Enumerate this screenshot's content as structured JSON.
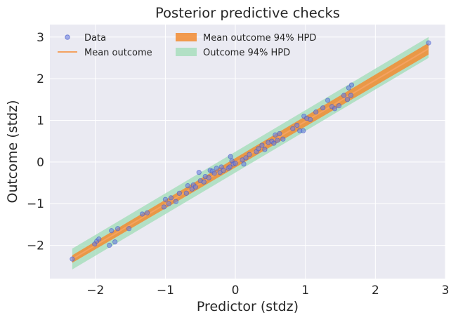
{
  "chart_data": {
    "type": "scatter",
    "title": "Posterior predictive checks",
    "xlabel": "Predictor (stdz)",
    "ylabel": "Outcome (stdz)",
    "xlim": [
      -2.65,
      3.0
    ],
    "ylim": [
      -2.8,
      3.3
    ],
    "xticks": [
      -2,
      -1,
      0,
      1,
      2,
      3
    ],
    "yticks": [
      -2,
      -1,
      0,
      1,
      2,
      3
    ],
    "xtick_labels": [
      "−2",
      "−1",
      "0",
      "1",
      "2",
      "3"
    ],
    "ytick_labels": [
      "−2",
      "−1",
      "0",
      "1",
      "2",
      "3"
    ],
    "grid": true,
    "legend_position": "top-left",
    "colors": {
      "data": "#6b7fe0",
      "mean_line": "#f4a261",
      "mean_band": "#f28b30",
      "outcome_band": "#9fdcb5",
      "background": "#eaeaf2"
    },
    "legend": [
      {
        "label": "Data",
        "kind": "marker"
      },
      {
        "label": "Mean outcome",
        "kind": "line"
      },
      {
        "label": "Mean outcome 94% HPD",
        "kind": "band-orange"
      },
      {
        "label": "Outcome 94% HPD",
        "kind": "band-green"
      }
    ],
    "mean_line": {
      "x": [
        -2.33,
        2.76
      ],
      "y": [
        -2.33,
        2.72
      ]
    },
    "mean_band": {
      "x": [
        -2.33,
        2.76
      ],
      "lower": [
        -2.42,
        2.58
      ],
      "upper": [
        -2.24,
        2.86
      ]
    },
    "outcome_band": {
      "x": [
        -2.33,
        2.76
      ],
      "lower": [
        -2.58,
        2.5
      ],
      "upper": [
        -2.08,
        3.0
      ]
    },
    "points": [
      {
        "x": -2.33,
        "y": -2.33
      },
      {
        "x": -2.01,
        "y": -1.97
      },
      {
        "x": -1.98,
        "y": -1.9
      },
      {
        "x": -1.95,
        "y": -1.85
      },
      {
        "x": -1.8,
        "y": -2.0
      },
      {
        "x": -1.72,
        "y": -1.92
      },
      {
        "x": -1.77,
        "y": -1.65
      },
      {
        "x": -1.68,
        "y": -1.6
      },
      {
        "x": -1.52,
        "y": -1.6
      },
      {
        "x": -1.33,
        "y": -1.25
      },
      {
        "x": -1.26,
        "y": -1.22
      },
      {
        "x": -1.02,
        "y": -1.08
      },
      {
        "x": -1.0,
        "y": -0.9
      },
      {
        "x": -0.95,
        "y": -1.0
      },
      {
        "x": -0.92,
        "y": -0.86
      },
      {
        "x": -0.85,
        "y": -0.95
      },
      {
        "x": -0.8,
        "y": -0.75
      },
      {
        "x": -0.7,
        "y": -0.75
      },
      {
        "x": -0.68,
        "y": -0.57
      },
      {
        "x": -0.62,
        "y": -0.65
      },
      {
        "x": -0.6,
        "y": -0.55
      },
      {
        "x": -0.57,
        "y": -0.6
      },
      {
        "x": -0.5,
        "y": -0.45
      },
      {
        "x": -0.52,
        "y": -0.25
      },
      {
        "x": -0.45,
        "y": -0.48
      },
      {
        "x": -0.43,
        "y": -0.35
      },
      {
        "x": -0.38,
        "y": -0.38
      },
      {
        "x": -0.36,
        "y": -0.2
      },
      {
        "x": -0.33,
        "y": -0.22
      },
      {
        "x": -0.3,
        "y": -0.27
      },
      {
        "x": -0.27,
        "y": -0.15
      },
      {
        "x": -0.22,
        "y": -0.25
      },
      {
        "x": -0.2,
        "y": -0.12
      },
      {
        "x": -0.17,
        "y": -0.2
      },
      {
        "x": -0.1,
        "y": -0.15
      },
      {
        "x": -0.08,
        "y": -0.12
      },
      {
        "x": -0.05,
        "y": 0.03
      },
      {
        "x": -0.07,
        "y": 0.13
      },
      {
        "x": -0.03,
        "y": -0.05
      },
      {
        "x": 0.0,
        "y": -0.03
      },
      {
        "x": 0.1,
        "y": 0.05
      },
      {
        "x": 0.12,
        "y": -0.05
      },
      {
        "x": 0.15,
        "y": 0.1
      },
      {
        "x": 0.2,
        "y": 0.18
      },
      {
        "x": 0.3,
        "y": 0.25
      },
      {
        "x": 0.33,
        "y": 0.32
      },
      {
        "x": 0.38,
        "y": 0.4
      },
      {
        "x": 0.42,
        "y": 0.3
      },
      {
        "x": 0.47,
        "y": 0.47
      },
      {
        "x": 0.52,
        "y": 0.5
      },
      {
        "x": 0.55,
        "y": 0.45
      },
      {
        "x": 0.57,
        "y": 0.65
      },
      {
        "x": 0.6,
        "y": 0.52
      },
      {
        "x": 0.63,
        "y": 0.68
      },
      {
        "x": 0.68,
        "y": 0.55
      },
      {
        "x": 0.82,
        "y": 0.8
      },
      {
        "x": 0.88,
        "y": 0.88
      },
      {
        "x": 0.92,
        "y": 0.75
      },
      {
        "x": 0.97,
        "y": 0.75
      },
      {
        "x": 0.98,
        "y": 1.1
      },
      {
        "x": 1.02,
        "y": 1.05
      },
      {
        "x": 1.07,
        "y": 1.02
      },
      {
        "x": 1.15,
        "y": 1.2
      },
      {
        "x": 1.25,
        "y": 1.3
      },
      {
        "x": 1.32,
        "y": 1.48
      },
      {
        "x": 1.38,
        "y": 1.33
      },
      {
        "x": 1.42,
        "y": 1.28
      },
      {
        "x": 1.48,
        "y": 1.35
      },
      {
        "x": 1.55,
        "y": 1.6
      },
      {
        "x": 1.6,
        "y": 1.5
      },
      {
        "x": 1.62,
        "y": 1.78
      },
      {
        "x": 1.66,
        "y": 1.85
      },
      {
        "x": 1.65,
        "y": 1.6
      },
      {
        "x": 2.76,
        "y": 2.86
      }
    ]
  }
}
